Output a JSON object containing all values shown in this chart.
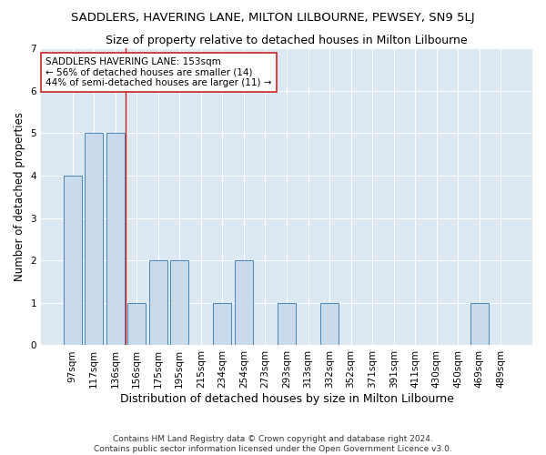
{
  "title": "SADDLERS, HAVERING LANE, MILTON LILBOURNE, PEWSEY, SN9 5LJ",
  "subtitle": "Size of property relative to detached houses in Milton Lilbourne",
  "xlabel": "Distribution of detached houses by size in Milton Lilbourne",
  "ylabel": "Number of detached properties",
  "categories": [
    "97sqm",
    "117sqm",
    "136sqm",
    "156sqm",
    "175sqm",
    "195sqm",
    "215sqm",
    "234sqm",
    "254sqm",
    "273sqm",
    "293sqm",
    "313sqm",
    "332sqm",
    "352sqm",
    "371sqm",
    "391sqm",
    "411sqm",
    "430sqm",
    "450sqm",
    "469sqm",
    "489sqm"
  ],
  "values": [
    4,
    5,
    5,
    1,
    2,
    2,
    0,
    1,
    2,
    0,
    1,
    0,
    1,
    0,
    0,
    0,
    0,
    0,
    0,
    1,
    0
  ],
  "bar_color": "#c9daea",
  "bar_edge_color": "#4a86b8",
  "red_line_x": 2.5,
  "red_line_color": "#cc2222",
  "annotation_text": "SADDLERS HAVERING LANE: 153sqm\n← 56% of detached houses are smaller (14)\n44% of semi-detached houses are larger (11) →",
  "annotation_box_edge": "#cc2222",
  "ylim": [
    0,
    7
  ],
  "yticks": [
    0,
    1,
    2,
    3,
    4,
    5,
    6,
    7
  ],
  "footnote": "Contains HM Land Registry data © Crown copyright and database right 2024.\nContains public sector information licensed under the Open Government Licence v3.0.",
  "bg_color": "#ffffff",
  "plot_bg_color": "#dce8f2",
  "grid_color": "#ffffff",
  "title_fontsize": 9.5,
  "subtitle_fontsize": 9,
  "xlabel_fontsize": 9,
  "ylabel_fontsize": 8.5,
  "tick_fontsize": 7.5,
  "footnote_fontsize": 6.5
}
